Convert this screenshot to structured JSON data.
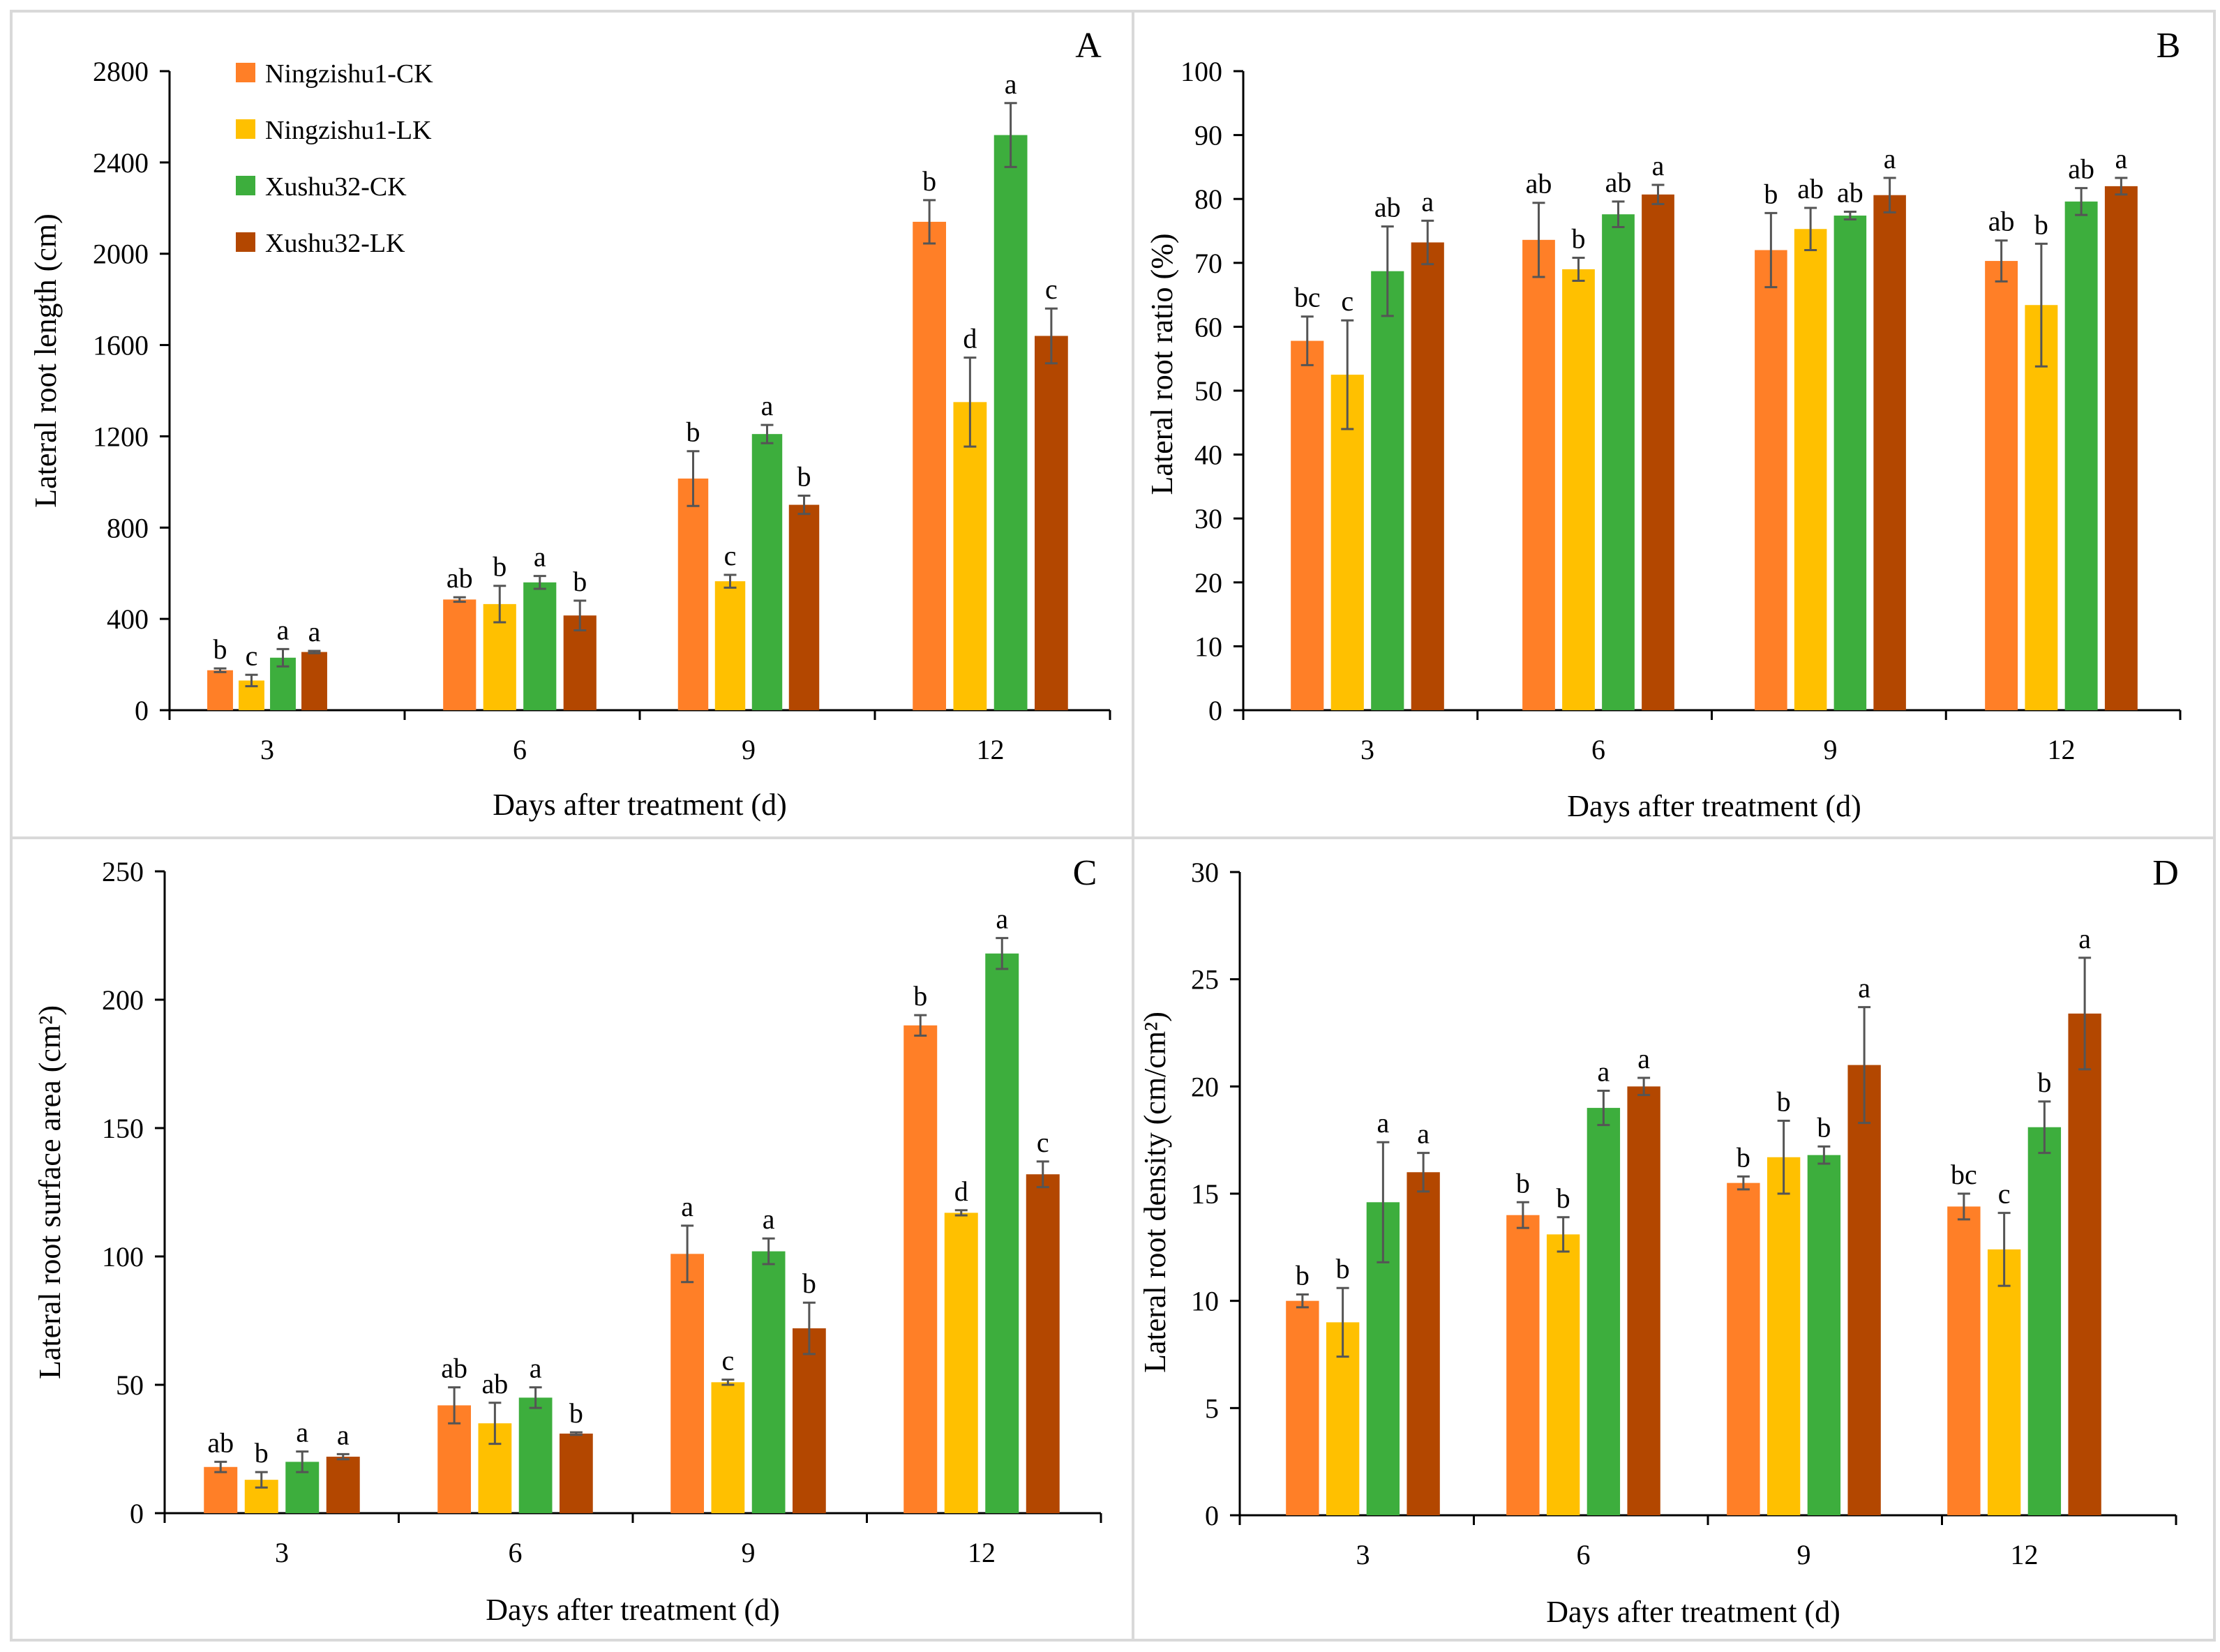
{
  "legend": [
    {
      "name": "Ningzishu1-CK",
      "color": "#FF7F27"
    },
    {
      "name": "Ningzishu1-LK",
      "color": "#FFC000"
    },
    {
      "name": "Xushu32-CK",
      "color": "#3DAE3D"
    },
    {
      "name": "Xushu32-LK",
      "color": "#B34700"
    }
  ],
  "chart_data": [
    {
      "type": "bar",
      "panel": "A",
      "categories": [
        "3",
        "6",
        "9",
        "12"
      ],
      "xlabel": "Days after treatment (d)",
      "ylabel": "Lateral root length (cm)",
      "ylim": [
        0,
        2800
      ],
      "yticks": [
        "0",
        "400",
        "800",
        "1200",
        "1600",
        "2000",
        "2400",
        "2800"
      ],
      "series": [
        {
          "name": "Ningzishu1-CK",
          "values": [
            175,
            485,
            1015,
            2140
          ],
          "errors": [
            8,
            10,
            120,
            95
          ],
          "sig": [
            "b",
            "ab",
            "b",
            "b"
          ]
        },
        {
          "name": "Ningzishu1-LK",
          "values": [
            130,
            465,
            565,
            1350
          ],
          "errors": [
            25,
            80,
            28,
            195
          ],
          "sig": [
            "c",
            "b",
            "c",
            "d"
          ]
        },
        {
          "name": "Xushu32-CK",
          "values": [
            230,
            560,
            1210,
            2520
          ],
          "errors": [
            38,
            28,
            40,
            140
          ],
          "sig": [
            "a",
            "a",
            "a",
            "a"
          ]
        },
        {
          "name": "Xushu32-LK",
          "values": [
            255,
            415,
            900,
            1640
          ],
          "errors": [
            5,
            65,
            40,
            120
          ],
          "sig": [
            "a",
            "b",
            "b",
            "c"
          ]
        }
      ]
    },
    {
      "type": "bar",
      "panel": "B",
      "categories": [
        "3",
        "6",
        "9",
        "12"
      ],
      "xlabel": "Days after treatment (d)",
      "ylabel": "Lateral root ratio (%)",
      "ylim": [
        0,
        100
      ],
      "yticks": [
        "0",
        "10",
        "20",
        "30",
        "40",
        "50",
        "60",
        "70",
        "80",
        "90",
        "100"
      ],
      "series": [
        {
          "name": "Ningzishu1-CK",
          "values": [
            57.8,
            73.6,
            72.0,
            70.3
          ],
          "errors": [
            3.8,
            5.8,
            5.8,
            3.2
          ],
          "sig": [
            "bc",
            "ab",
            "b",
            "ab"
          ]
        },
        {
          "name": "Ningzishu1-LK",
          "values": [
            52.5,
            69.0,
            75.3,
            63.4
          ],
          "errors": [
            8.5,
            1.8,
            3.3,
            9.6
          ],
          "sig": [
            "c",
            "b",
            "ab",
            "b"
          ]
        },
        {
          "name": "Xushu32-CK",
          "values": [
            68.7,
            77.6,
            77.4,
            79.6
          ],
          "errors": [
            7.0,
            2.0,
            0.6,
            2.1
          ],
          "sig": [
            "ab",
            "ab",
            "ab",
            "ab"
          ]
        },
        {
          "name": "Xushu32-LK",
          "values": [
            73.2,
            80.7,
            80.6,
            82.0
          ],
          "errors": [
            3.4,
            1.5,
            2.7,
            1.3
          ],
          "sig": [
            "a",
            "a",
            "a",
            "a"
          ]
        }
      ]
    },
    {
      "type": "bar",
      "panel": "C",
      "categories": [
        "3",
        "6",
        "9",
        "12"
      ],
      "xlabel": "Days after treatment (d)",
      "ylabel": "Lateral root surface area (cm²)",
      "ylim": [
        0,
        250
      ],
      "yticks": [
        "0",
        "50",
        "100",
        "150",
        "200",
        "250"
      ],
      "series": [
        {
          "name": "Ningzishu1-CK",
          "values": [
            18,
            42,
            101,
            190
          ],
          "errors": [
            2,
            7,
            11,
            4
          ],
          "sig": [
            "ab",
            "ab",
            "a",
            "b"
          ]
        },
        {
          "name": "Ningzishu1-LK",
          "values": [
            13,
            35,
            51,
            117
          ],
          "errors": [
            3,
            8,
            1,
            1
          ],
          "sig": [
            "b",
            "ab",
            "c",
            "d"
          ]
        },
        {
          "name": "Xushu32-CK",
          "values": [
            20,
            45,
            102,
            218
          ],
          "errors": [
            4,
            4,
            5,
            6
          ],
          "sig": [
            "a",
            "a",
            "a",
            "a"
          ]
        },
        {
          "name": "Xushu32-LK",
          "values": [
            22,
            31,
            72,
            132
          ],
          "errors": [
            1,
            0.5,
            10,
            5
          ],
          "sig": [
            "a",
            "b",
            "b",
            "c"
          ]
        }
      ]
    },
    {
      "type": "bar",
      "panel": "D",
      "categories": [
        "3",
        "6",
        "9",
        "12"
      ],
      "xlabel": "Days after treatment (d)",
      "ylabel": "Lateral root density (cm/cm²)",
      "ylim": [
        0,
        30
      ],
      "yticks": [
        "0",
        "5",
        "10",
        "15",
        "20",
        "25",
        "30"
      ],
      "series": [
        {
          "name": "Ningzishu1-CK",
          "values": [
            10.0,
            14.0,
            15.5,
            14.4
          ],
          "errors": [
            0.3,
            0.6,
            0.3,
            0.6
          ],
          "sig": [
            "b",
            "b",
            "b",
            "bc"
          ]
        },
        {
          "name": "Ningzishu1-LK",
          "values": [
            9.0,
            13.1,
            16.7,
            12.4
          ],
          "errors": [
            1.6,
            0.8,
            1.7,
            1.7
          ],
          "sig": [
            "b",
            "b",
            "b",
            "c"
          ]
        },
        {
          "name": "Xushu32-CK",
          "values": [
            14.6,
            19.0,
            16.8,
            18.1
          ],
          "errors": [
            2.8,
            0.8,
            0.4,
            1.2
          ],
          "sig": [
            "a",
            "a",
            "b",
            "b"
          ]
        },
        {
          "name": "Xushu32-LK",
          "values": [
            16.0,
            20.0,
            21.0,
            23.4
          ],
          "errors": [
            0.9,
            0.4,
            2.7,
            2.6
          ],
          "sig": [
            "a",
            "a",
            "a",
            "a"
          ]
        }
      ]
    }
  ]
}
